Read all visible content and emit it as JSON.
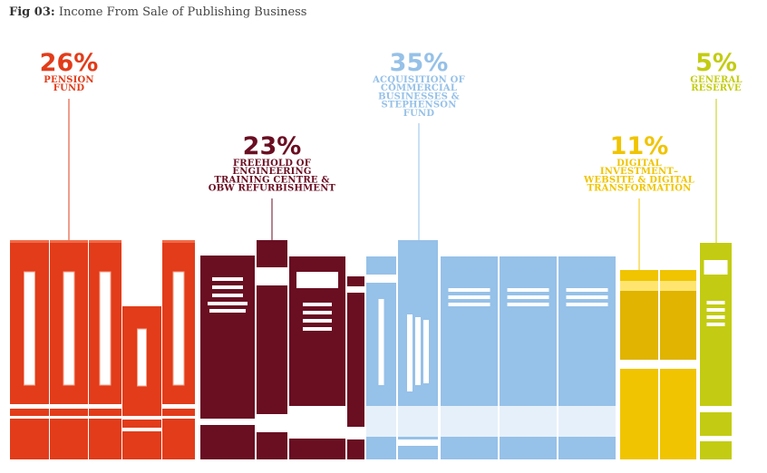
{
  "title": {
    "prefix": "Fig 03:",
    "text": "Income From Sale of Publishing Business"
  },
  "chart_data": {
    "type": "bar",
    "title": "Income From Sale of Publishing Business",
    "unit": "%",
    "categories": [
      "PENSION FUND",
      "FREEHOLD OF ENGINEERING TRAINING CENTRE & OBW REFURBISHMENT",
      "ACQUISITION OF COMMERCIAL BUSINESSES & STEPHENSON FUND",
      "DIGITAL INVESTMENT– WEBSITE & DIGITAL TRANSFORMATION",
      "GENERAL RESERVE"
    ],
    "values": [
      26,
      23,
      35,
      11,
      5
    ],
    "segments": [
      {
        "value": "26%",
        "label_lines": [
          "PENSION",
          "FUND"
        ],
        "color": "#e23c1a"
      },
      {
        "value": "23%",
        "label_lines": [
          "FREEHOLD OF",
          "ENGINEERING",
          "TRAINING CENTRE &",
          "OBW REFURBISHMENT"
        ],
        "color": "#6a0e22"
      },
      {
        "value": "35%",
        "label_lines": [
          "ACQUISITION OF",
          "COMMERCIAL",
          "BUSINESSES &",
          "STEPHENSON",
          "FUND"
        ],
        "color": "#96c1e8"
      },
      {
        "value": "11%",
        "label_lines": [
          "DIGITAL",
          "INVESTMENT–",
          "WEBSITE & DIGITAL",
          "TRANSFORMATION"
        ],
        "color": "#f0c400"
      },
      {
        "value": "5%",
        "label_lines": [
          "GENERAL",
          "RESERVE"
        ],
        "color": "#c3cc12"
      }
    ]
  }
}
